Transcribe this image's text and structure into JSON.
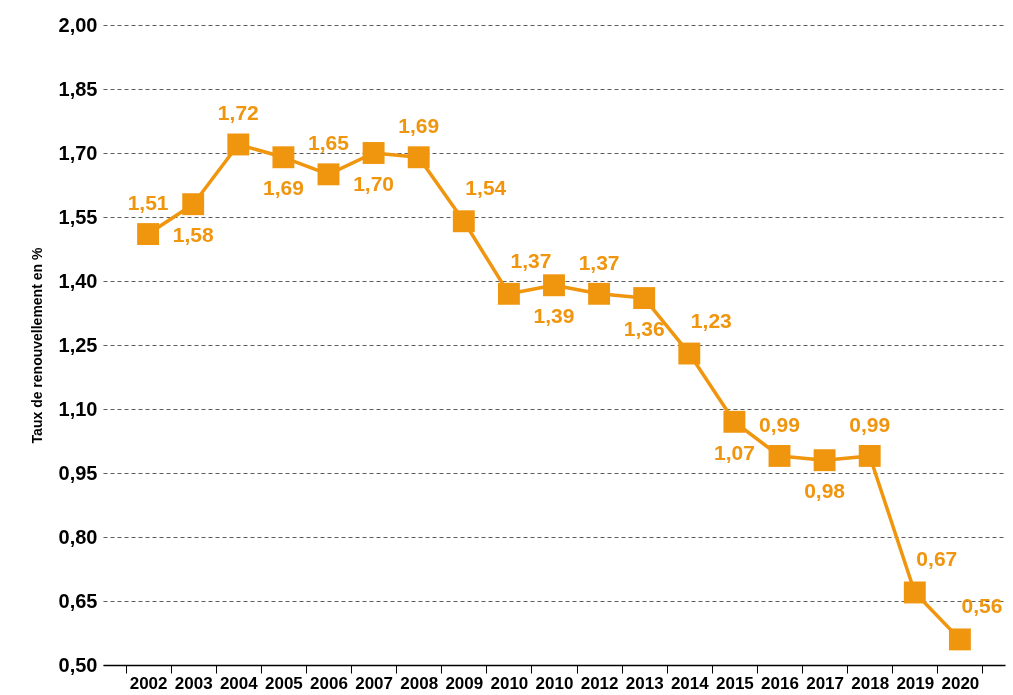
{
  "chart_data": {
    "type": "line",
    "ylabel": "Taux de renouvellement en %",
    "categories": [
      "2002",
      "2003",
      "2004",
      "2005",
      "2006",
      "2007",
      "2008",
      "2009",
      "2010",
      "2010",
      "2012",
      "2013",
      "2014",
      "2015",
      "2016",
      "2017",
      "2018",
      "2019",
      "2020"
    ],
    "series": [
      {
        "color": "#f0950e",
        "values": [
          1.51,
          1.58,
          1.72,
          1.69,
          1.65,
          1.7,
          1.69,
          1.54,
          1.37,
          1.39,
          1.37,
          1.36,
          1.23,
          1.07,
          0.99,
          0.98,
          0.99,
          0.67,
          0.56
        ],
        "value_labels": [
          "1,51",
          "1,58",
          "1,72",
          "1,69",
          "1,65",
          "1,70",
          "1,69",
          "1,54",
          "1,37",
          "1,39",
          "1,37",
          "1,36",
          "1,23",
          "1,07",
          "0,99",
          "0,98",
          "0,99",
          "0,67",
          "0,56"
        ]
      }
    ],
    "ylim": [
      0.5,
      2.0
    ],
    "yticks": [
      {
        "value": 0.5,
        "label": "0,50"
      },
      {
        "value": 0.65,
        "label": "0,65"
      },
      {
        "value": 0.8,
        "label": "0,80"
      },
      {
        "value": 0.95,
        "label": "0,95"
      },
      {
        "value": 1.1,
        "label": "1,10"
      },
      {
        "value": 1.25,
        "label": "1,25"
      },
      {
        "value": 1.4,
        "label": "1,40"
      },
      {
        "value": 1.55,
        "label": "1,55"
      },
      {
        "value": 1.7,
        "label": "1,70"
      },
      {
        "value": 1.85,
        "label": "1,85"
      },
      {
        "value": 2.0,
        "label": "2,00"
      }
    ],
    "grid": "y",
    "marker": "square",
    "line_style": "solid"
  }
}
